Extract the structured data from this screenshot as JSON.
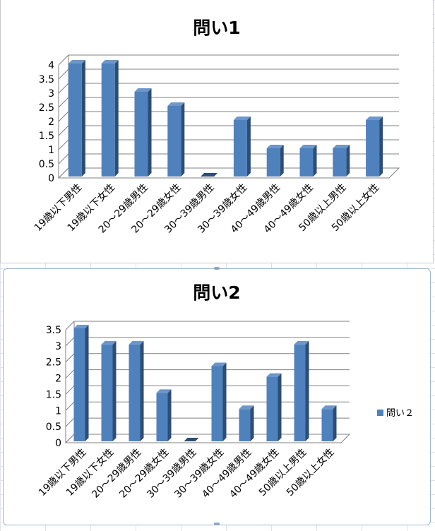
{
  "chart_data": [
    {
      "type": "bar",
      "title": "問い1",
      "xlabel": "",
      "ylabel": "",
      "categories": [
        "19歳以下男性",
        "19歳以下女性",
        "20～29歳男性",
        "20～29歳女性",
        "30～39歳男性",
        "30～39歳女性",
        "40～49歳男性",
        "40～49歳女性",
        "50歳以上男性",
        "50歳以上女性"
      ],
      "series": [
        {
          "values": [
            4,
            4,
            3,
            2.5,
            0,
            2,
            1,
            1,
            1,
            2
          ]
        }
      ],
      "ylim": [
        0,
        4
      ],
      "yticks": [
        "0",
        "0.5",
        "1",
        "1.5",
        "2",
        "2.5",
        "3",
        "3.5",
        "4"
      ],
      "grid": true,
      "legend": "none"
    },
    {
      "type": "bar",
      "title": "問い2",
      "xlabel": "",
      "ylabel": "",
      "categories": [
        "19歳以下男性",
        "19歳以下女性",
        "20～29歳男性",
        "20～29歳女性",
        "30～39歳男性",
        "30～39歳女性",
        "40～49歳男性",
        "40～49歳女性",
        "50歳以上男性",
        "50歳以上女性"
      ],
      "series": [
        {
          "name": "問い２",
          "values": [
            3.5,
            3,
            3,
            1.5,
            0,
            2.33,
            1,
            2,
            3,
            1
          ]
        }
      ],
      "ylim": [
        0,
        3.5
      ],
      "yticks": [
        "0",
        "0.5",
        "1",
        "1.5",
        "2",
        "2.5",
        "3",
        "3.5"
      ],
      "grid": true,
      "legend": "right"
    }
  ],
  "colors": {
    "bar_front": "#4f81bd",
    "bar_side": "#2c4d75",
    "bar_top": "#6d96c9",
    "grid": "#808080"
  }
}
